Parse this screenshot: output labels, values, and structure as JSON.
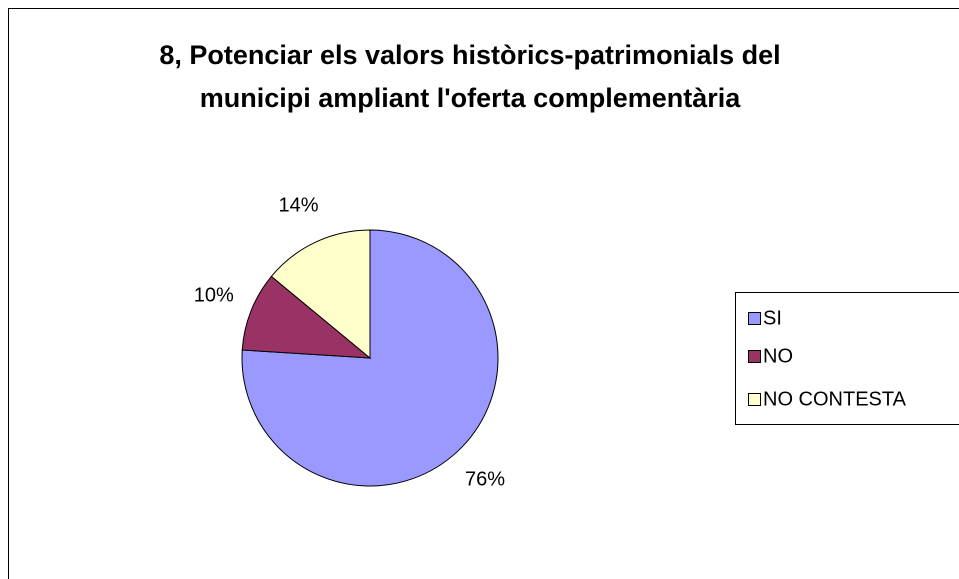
{
  "chart_data": {
    "type": "pie",
    "title": [
      "8, Potenciar els valors històrics-patrimonials del",
      "municipi ampliant l'oferta complementària"
    ],
    "categories": [
      "SI",
      "NO",
      "NO CONTESTA"
    ],
    "values": [
      76,
      10,
      14
    ],
    "value_labels": [
      "76%",
      "10%",
      "14%"
    ],
    "colors": [
      "#9999ff",
      "#993366",
      "#ffffcc"
    ],
    "legend": "right"
  }
}
